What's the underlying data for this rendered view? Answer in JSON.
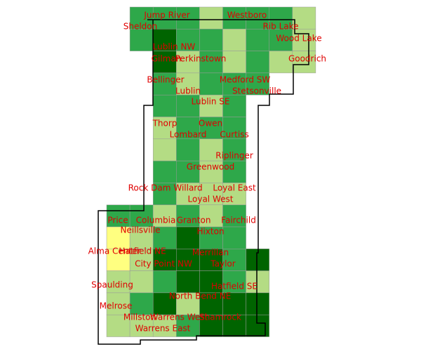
{
  "places": [
    "Jump River",
    "Westboro",
    "Sheldon",
    "Rib Lake",
    "Wood Lake",
    "Lublin NW",
    "Gilman",
    "Perkinstown",
    "Goodrich",
    "Bellinger",
    "Medford SW",
    "Lublin",
    "Stetsonville",
    "Lublin SE",
    "Thorp",
    "Owen",
    "Lombard",
    "Curtiss",
    "Riplinger",
    "Greenwood",
    "Rock Dam",
    "Willard",
    "Loyal East",
    "Loyal West",
    "Price",
    "Columbia",
    "Granton",
    "Fairchild",
    "Neillsville",
    "Hixton",
    "Alma Center",
    "Hatfield NE",
    "Merrillan",
    "City Point NW",
    "Taylor",
    "Spaulding",
    "Hatfield SE",
    "North Bend NE",
    "Melrose",
    "Millston",
    "Warrens West",
    "Shamrock",
    "Warrens East"
  ]
}
